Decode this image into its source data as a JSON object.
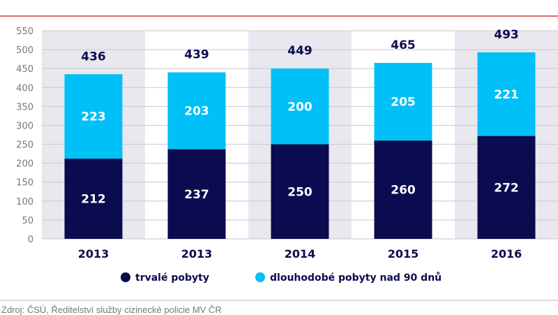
{
  "chart_data": {
    "type": "bar",
    "stacked": true,
    "categories": [
      "2013",
      "2013",
      "2014",
      "2015",
      "2016"
    ],
    "series": [
      {
        "name": "trvalé pobyty",
        "values": [
          212,
          237,
          250,
          260,
          272
        ],
        "color": "#0b0b4f"
      },
      {
        "name": "dlouhodobé pobyty nad 90 dnů",
        "values": [
          223,
          203,
          200,
          205,
          221
        ],
        "color": "#00c0f8"
      }
    ],
    "totals": [
      436,
      439,
      449,
      465,
      493
    ],
    "ylim": [
      0,
      550
    ],
    "yticks": [
      0,
      50,
      100,
      150,
      200,
      250,
      300,
      350,
      400,
      450,
      500,
      550
    ],
    "grid": true,
    "legend": "bottom"
  },
  "source": "Zdroj: ČSÚ, Ředitelství služby cizinecké policie MV ČR",
  "colors": {
    "title_line": "#d9333f",
    "band": "#e9e8ee"
  }
}
